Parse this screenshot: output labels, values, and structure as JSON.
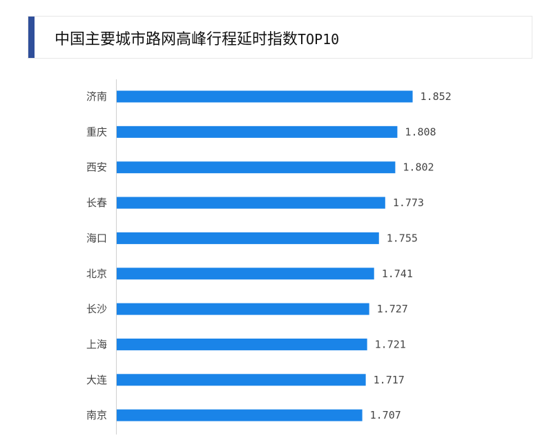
{
  "title": {
    "main": "中国主要城市路网高峰行程延时指数",
    "suffix": "TOP10",
    "accent_color": "#2f4f9a"
  },
  "chart_data": {
    "type": "bar",
    "orientation": "horizontal",
    "title": "中国主要城市路网高峰行程延时指数TOP10",
    "categories": [
      "济南",
      "重庆",
      "西安",
      "长春",
      "海口",
      "北京",
      "长沙",
      "上海",
      "大连",
      "南京"
    ],
    "values": [
      1.852,
      1.808,
      1.802,
      1.773,
      1.755,
      1.741,
      1.727,
      1.721,
      1.717,
      1.707
    ],
    "value_labels": [
      "1.852",
      "1.808",
      "1.802",
      "1.773",
      "1.755",
      "1.741",
      "1.727",
      "1.721",
      "1.717",
      "1.707"
    ],
    "xlim": [
      1.0,
      2.0
    ],
    "bar_color": "#1a84e8",
    "grid": false,
    "data_labels": true,
    "xlabel": "",
    "ylabel": ""
  }
}
